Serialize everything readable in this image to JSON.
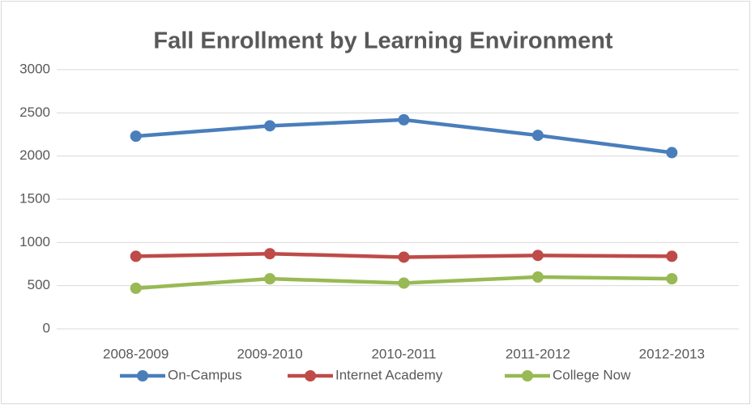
{
  "chart_data": {
    "type": "line",
    "title": "Fall Enrollment by Learning Environment",
    "categories": [
      "2008-2009",
      "2009-2010",
      "2010-2011",
      "2011-2012",
      "2012-2013"
    ],
    "series": [
      {
        "name": "On-Campus",
        "color": "#4a7ebb",
        "values": [
          2230,
          2350,
          2420,
          2240,
          2040
        ]
      },
      {
        "name": "Internet Academy",
        "color": "#be4b48",
        "values": [
          840,
          870,
          830,
          850,
          840
        ]
      },
      {
        "name": "College Now",
        "color": "#98b954",
        "values": [
          470,
          580,
          530,
          600,
          580
        ]
      }
    ],
    "ylim": [
      0,
      3000
    ],
    "yticks": [
      0,
      500,
      1000,
      1500,
      2000,
      2500,
      3000
    ],
    "grid": true,
    "legend": "bottom"
  }
}
